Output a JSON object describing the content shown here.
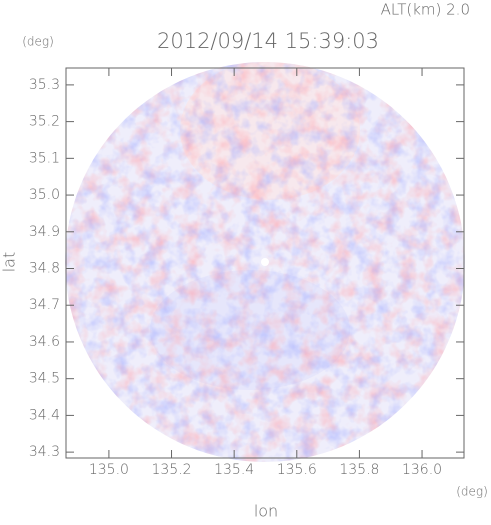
{
  "chart_data": {
    "type": "radar-image",
    "title": "2012/09/14 15:39:03",
    "subtitle": "ALT(km) 2.0",
    "x_label": "lon",
    "y_label": "lat",
    "x_unit": "(deg)",
    "y_unit": "(deg)",
    "xlim": [
      134.863,
      136.134
    ],
    "ylim": [
      34.284,
      35.346
    ],
    "xticks": [
      {
        "value": 135.0,
        "label": "135.0"
      },
      135.2,
      135.4,
      135.6,
      135.8,
      {
        "value": 136.0,
        "label": "136.0"
      }
    ],
    "yticks": [
      34.3,
      34.4,
      34.5,
      34.6,
      34.7,
      34.8,
      34.9,
      {
        "value": 35.0,
        "label": "35.0"
      },
      35.1,
      35.2,
      35.3
    ]
  }
}
